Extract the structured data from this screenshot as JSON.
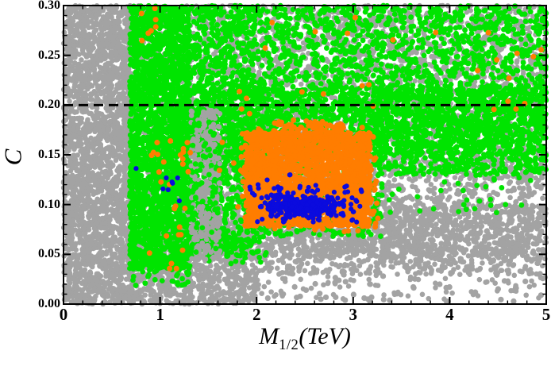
{
  "chart_data": {
    "type": "scatter",
    "title": "",
    "xlabel_main": "M",
    "xlabel_sub": "1/2",
    "xlabel_units": "(TeV)",
    "ylabel": "C",
    "xlim": [
      0,
      5
    ],
    "ylim": [
      0,
      0.3
    ],
    "x_tick_values": [
      0,
      1,
      2,
      3,
      4,
      5
    ],
    "x_tick_labels": [
      "0",
      "1",
      "2",
      "3",
      "4",
      "5"
    ],
    "y_tick_values": [
      0.0,
      0.05,
      0.1,
      0.15,
      0.2,
      0.25,
      0.3
    ],
    "y_tick_labels": [
      "0.00",
      "0.05",
      "0.10",
      "0.15",
      "0.20",
      "0.25",
      "0.30"
    ],
    "x_minor_step": 0.2,
    "y_minor_step": 0.01,
    "grid": false,
    "legend": false,
    "ticks_inward_all_sides": true,
    "background": "#FFFFFF",
    "dashed_line": {
      "y": 0.2,
      "color": "#000000",
      "dash": [
        12,
        7
      ],
      "width": 3
    },
    "colors": {
      "gray": "#A3A3A3",
      "green": "#00E400",
      "orange": "#FF7D00",
      "blue": "#0B0BDE",
      "axis": "#000000"
    },
    "default_radius": {
      "gray": 3.3,
      "green": 3.4,
      "orange": 3.5,
      "blue": 3.1
    },
    "description": "Dense scatter scan: solid gray block for M12<0.7 TeV over full C range; gray point field behind green over 0.7-5 TeV for C>0.05, thinning to sparse gray dots below C~0.06 for M12>2; near-solid green region from 0.7-5 TeV for C~0.07-0.30 (solid column 0.7-1.3 TeV down to C~0.035, gray gap column ~1.32-1.62 TeV below C~0.2); dense orange blob 1.9-3.2 TeV, C~0.078-0.172 with scattered orange points in the green column and upper field; blue cluster centered ~2.5 TeV, C~0.099; black dashed horizontal line at C=0.20.",
    "layers": [
      {
        "color": "gray",
        "clusters": [
          {
            "x": [
              0,
              0.705
            ],
            "y": [
              0,
              0.3
            ],
            "n": 2600
          },
          {
            "x": [
              0.68,
              5
            ],
            "y": [
              0.048,
              0.3
            ],
            "n": 5200
          },
          {
            "x": [
              0.68,
              2.02
            ],
            "y": [
              0,
              0.085
            ],
            "n": 1000
          },
          {
            "x": [
              2.0,
              5
            ],
            "y": [
              0.03,
              0.062
            ],
            "n": 300
          },
          {
            "x": [
              2.0,
              3.5
            ],
            "y": [
              0.005,
              0.075
            ],
            "n": 260,
            "bias_top": 1.8
          },
          {
            "x": [
              3.5,
              5
            ],
            "y": [
              0.005,
              0.055
            ],
            "n": 140,
            "bias_top": 2.0
          },
          {
            "x": [
              1.25,
              5
            ],
            "y": [
              0.002,
              0.03
            ],
            "n": 60,
            "r": 3.6
          },
          {
            "x": [
              3.2,
              5
            ],
            "y": [
              0.06,
              0.1
            ],
            "n": 350
          }
        ]
      },
      {
        "color": "green",
        "clusters": [
          {
            "x": [
              0.685,
              1.315
            ],
            "y": [
              0.035,
              0.3
            ],
            "n": 2400
          },
          {
            "x": [
              0.7,
              1.3
            ],
            "y": [
              0.018,
              0.045
            ],
            "n": 50
          },
          {
            "x": [
              1.315,
              1.98
            ],
            "y": [
              0.048,
              0.3
            ],
            "n": 1050
          },
          {
            "x": [
              1.9,
              3.3
            ],
            "y": [
              0.068,
              0.3
            ],
            "n": 1300
          },
          {
            "x": [
              3.25,
              5
            ],
            "y": [
              0.13,
              0.22
            ],
            "n": 1000
          },
          {
            "x": [
              3.25,
              5
            ],
            "y": [
              0.22,
              0.3
            ],
            "n": 560
          },
          {
            "x": [
              1.32,
              5
            ],
            "y": [
              0.15,
              0.218
            ],
            "n": 1100
          },
          {
            "x": [
              3.2,
              5
            ],
            "y": [
              0.09,
              0.14
            ],
            "n": 45
          },
          {
            "x": [
              1.5,
              2.1
            ],
            "y": [
              0.04,
              0.07
            ],
            "n": 45
          }
        ]
      },
      {
        "color": "gray",
        "clusters": [
          {
            "x": [
              1.32,
              1.62
            ],
            "y": [
              0.045,
              0.195
            ],
            "n": 330
          }
        ]
      },
      {
        "color": "green",
        "clusters": [
          {
            "x": [
              1.33,
              1.61
            ],
            "y": [
              0.05,
              0.19
            ],
            "n": 55
          }
        ]
      },
      {
        "color": "orange",
        "clusters": [
          {
            "x": [
              1.88,
              3.18
            ],
            "y": [
              0.078,
              0.172
            ],
            "n": 2100
          },
          {
            "x": [
              1.8,
              3.26
            ],
            "y": [
              0.072,
              0.185
            ],
            "n": 170
          },
          {
            "x": [
              2.15,
              2.95
            ],
            "y": [
              0.17,
              0.184
            ],
            "n": 70
          },
          {
            "x": [
              0.78,
              1.33
            ],
            "y": [
              0.05,
              0.175
            ],
            "n": 26
          },
          {
            "x": [
              0.8,
              0.98
            ],
            "y": [
              0.262,
              0.298
            ],
            "n": 7
          },
          {
            "x": [
              0.95,
              1.25
            ],
            "y": [
              0.03,
              0.05
            ],
            "n": 3
          },
          {
            "x": [
              1.38,
              5
            ],
            "y": [
              0.19,
              0.298
            ],
            "n": 24
          },
          {
            "x": [
              1.55,
              1.95
            ],
            "y": [
              0.1,
              0.215
            ],
            "n": 9
          },
          {
            "x": [
              3.0,
              3.3
            ],
            "y": [
              0.13,
              0.175
            ],
            "n": 4
          }
        ]
      },
      {
        "color": "blue",
        "clusters": [
          {
            "gauss": {
              "cx": 2.48,
              "cy": 0.0985,
              "sx": 0.2,
              "sy": 0.0045
            },
            "clip": {
              "x": [
                2.02,
                2.98
              ],
              "y": [
                0.084,
                0.113
              ]
            },
            "n": 300
          },
          {
            "x": [
              2.0,
              3.08
            ],
            "y": [
              0.082,
              0.12
            ],
            "n": 70
          },
          {
            "x": [
              2.0,
              2.35
            ],
            "y": [
              0.105,
              0.132
            ],
            "n": 12
          },
          {
            "x": [
              0.95,
              1.2
            ],
            "y": [
              0.1,
              0.13
            ],
            "n": 7
          },
          {
            "x": [
              0.75,
              0.76
            ],
            "y": [
              0.135,
              0.137
            ],
            "n": 1
          },
          {
            "x": [
              3.0,
              3.1
            ],
            "y": [
              0.092,
              0.13
            ],
            "n": 5
          },
          {
            "x": [
              1.9,
              2.0
            ],
            "y": [
              0.095,
              0.12
            ],
            "n": 4
          }
        ]
      }
    ]
  }
}
